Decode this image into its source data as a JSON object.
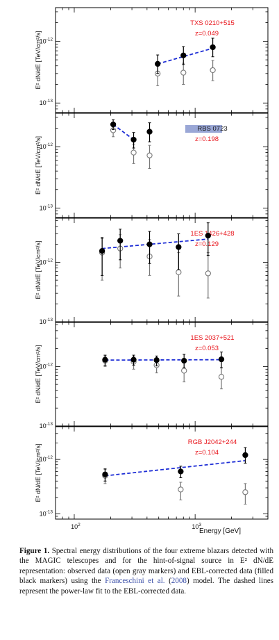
{
  "chart_data": [
    {
      "type": "scatter",
      "source_name": "TXS 0210+515",
      "redshift_label": "z=0.049",
      "ylabel": "E² dN/dE [TeV/cm²/s]",
      "y_scale": "log",
      "ylim": [
        7e-14,
        3.5e-12
      ],
      "y_ticks": [
        {
          "value": 1e-13,
          "mantissa": "10",
          "exp": "-13"
        },
        {
          "value": 1e-12,
          "mantissa": "10",
          "exp": "-12"
        }
      ],
      "series": [
        {
          "name": "observed data",
          "marker": "open gray circle",
          "x": [
            490,
            800,
            1400
          ],
          "y": [
            3e-13,
            3.1e-13,
            3.4e-13
          ],
          "y_err_low": [
            1.9e-13,
            2e-13,
            2.3e-13
          ],
          "y_err_high": [
            4.3e-13,
            4.4e-13,
            4.9e-13
          ]
        },
        {
          "name": "EBL-corrected data",
          "marker": "filled black circle",
          "x": [
            490,
            800,
            1400
          ],
          "y": [
            4.3e-13,
            5.9e-13,
            8e-13
          ],
          "y_err_low": [
            3e-13,
            4.2e-13,
            5.6e-13
          ],
          "y_err_high": [
            6e-13,
            8.2e-13,
            1.12e-12
          ]
        },
        {
          "name": "power-law fit",
          "style": "dashed blue",
          "x": [
            490,
            1400
          ],
          "y": [
            4.3e-13,
            7.7e-13
          ]
        }
      ]
    },
    {
      "type": "scatter",
      "source_name": "RBS 0723",
      "redshift_label": "z=0.198",
      "ylabel": "E² dN/dE [TeV/cm²/s]",
      "y_scale": "log",
      "ylim": [
        7e-14,
        3.5e-12
      ],
      "y_ticks": [
        {
          "value": 1e-13,
          "mantissa": "10",
          "exp": "-13"
        },
        {
          "value": 1e-12,
          "mantissa": "10",
          "exp": "-12"
        }
      ],
      "series": [
        {
          "name": "observed data",
          "marker": "open gray circle",
          "x": [
            210,
            310,
            420
          ],
          "y": [
            1.85e-12,
            8e-13,
            7.2e-13
          ],
          "y_err_low": [
            1.45e-12,
            5.3e-13,
            4.4e-13
          ],
          "y_err_high": [
            2.25e-12,
            1.1e-12,
            1.05e-12
          ]
        },
        {
          "name": "EBL-corrected data",
          "marker": "filled black circle",
          "x": [
            210,
            310,
            420
          ],
          "y": [
            2.3e-12,
            1.3e-12,
            1.75e-12
          ],
          "y_err_low": [
            1.9e-12,
            9.5e-13,
            1.2e-12
          ],
          "y_err_high": [
            2.75e-12,
            1.7e-12,
            2.45e-12
          ]
        },
        {
          "name": "power-law fit",
          "style": "dashed blue",
          "x": [
            210,
            310
          ],
          "y": [
            2.3e-12,
            1.3e-12
          ]
        }
      ]
    },
    {
      "type": "scatter",
      "source_name": "1ES 1426+428",
      "redshift_label": "z=0.129",
      "ylabel": "E² dN/dE [TeV/cm²/s]",
      "y_scale": "log",
      "ylim": [
        1e-13,
        5.5e-12
      ],
      "y_ticks": [
        {
          "value": 1e-13,
          "mantissa": "10",
          "exp": "-13"
        },
        {
          "value": 1e-12,
          "mantissa": "10",
          "exp": "-12"
        }
      ],
      "series": [
        {
          "name": "observed data",
          "marker": "open gray circle",
          "x": [
            170,
            240,
            420,
            730,
            1280
          ],
          "y": [
            1.45e-12,
            1.7e-12,
            1.25e-12,
            6.8e-13,
            6.5e-13
          ],
          "y_err_low": [
            5e-13,
            8e-13,
            6e-13,
            2.7e-13,
            2.5e-13
          ],
          "y_err_high": [
            2.5e-12,
            2.9e-12,
            2.4e-12,
            1.45e-12,
            1.45e-12
          ]
        },
        {
          "name": "EBL-corrected data",
          "marker": "filled black circle",
          "x": [
            170,
            240,
            420,
            730,
            1280
          ],
          "y": [
            1.55e-12,
            2.3e-12,
            2e-12,
            1.8e-12,
            2.8e-12
          ],
          "y_err_low": [
            6e-13,
            1.1e-12,
            9.5e-13,
            7.5e-13,
            1.3e-12
          ],
          "y_err_high": [
            2.6e-12,
            3.6e-12,
            3.3e-12,
            3e-12,
            4.6e-12
          ]
        },
        {
          "name": "power-law fit",
          "style": "dashed blue",
          "x": [
            170,
            1280
          ],
          "y": [
            1.7e-12,
            2.45e-12
          ]
        }
      ]
    },
    {
      "type": "scatter",
      "source_name": "1ES 2037+521",
      "redshift_label": "z=0.053",
      "ylabel": "E² dN/dE [TeV/cm²/s]",
      "y_scale": "log",
      "ylim": [
        1e-13,
        5.5e-12
      ],
      "y_ticks": [
        {
          "value": 1e-13,
          "mantissa": "10",
          "exp": "-13"
        },
        {
          "value": 1e-12,
          "mantissa": "10",
          "exp": "-12"
        }
      ],
      "series": [
        {
          "name": "observed data",
          "marker": "open gray circle",
          "x": [
            180,
            310,
            480,
            810,
            1650
          ],
          "y": [
            1.25e-12,
            1.2e-12,
            1.05e-12,
            8.5e-13,
            6.7e-13
          ],
          "y_err_low": [
            1e-12,
            9e-13,
            7.8e-13,
            5.5e-13,
            4.2e-13
          ],
          "y_err_high": [
            1.5e-12,
            1.45e-12,
            1.3e-12,
            1.15e-12,
            9.5e-13
          ]
        },
        {
          "name": "EBL-corrected data",
          "marker": "filled black circle",
          "x": [
            180,
            310,
            480,
            810,
            1650
          ],
          "y": [
            1.3e-12,
            1.3e-12,
            1.28e-12,
            1.25e-12,
            1.32e-12
          ],
          "y_err_low": [
            1.05e-12,
            1.05e-12,
            1.02e-12,
            9.5e-13,
            9.5e-13
          ],
          "y_err_high": [
            1.55e-12,
            1.55e-12,
            1.5e-12,
            1.6e-12,
            1.75e-12
          ]
        },
        {
          "name": "power-law fit",
          "style": "dashed blue",
          "x": [
            180,
            1650
          ],
          "y": [
            1.28e-12,
            1.3e-12
          ]
        }
      ]
    },
    {
      "type": "scatter",
      "source_name": "RGB J2042+244",
      "redshift_label": "z=0.104",
      "ylabel": "E² dN/dE [TeV/cm²/s]",
      "xlabel": "Energy [GeV]",
      "x_scale": "log",
      "xlim": [
        70,
        4000
      ],
      "x_ticks": [
        {
          "value": 100,
          "mantissa": "10",
          "exp": "2"
        },
        {
          "value": 1000,
          "mantissa": "10",
          "exp": "3"
        }
      ],
      "y_scale": "log",
      "ylim": [
        8e-14,
        4e-12
      ],
      "y_ticks": [
        {
          "value": 1e-13,
          "mantissa": "10",
          "exp": "-13"
        },
        {
          "value": 1e-12,
          "mantissa": "10",
          "exp": "-12"
        }
      ],
      "series": [
        {
          "name": "observed data",
          "marker": "open gray circle",
          "x": [
            180,
            760,
            2600
          ],
          "y": [
            5e-13,
            2.8e-13,
            2.5e-13
          ],
          "y_err_low": [
            3.6e-13,
            1.8e-13,
            1.5e-13
          ],
          "y_err_high": [
            6.5e-13,
            3.8e-13,
            3.6e-13
          ]
        },
        {
          "name": "EBL-corrected data",
          "marker": "filled black circle",
          "x": [
            180,
            760,
            2600
          ],
          "y": [
            5.3e-13,
            6e-13,
            1.2e-12
          ],
          "y_err_low": [
            4e-13,
            4.6e-13,
            8.5e-13
          ],
          "y_err_high": [
            6.7e-13,
            7.5e-13,
            1.65e-12
          ]
        },
        {
          "name": "power-law fit",
          "style": "dashed blue",
          "x": [
            180,
            2600
          ],
          "y": [
            5e-13,
            9.5e-13
          ]
        }
      ]
    }
  ],
  "caption": {
    "label": "Figure 1.",
    "text_before_cite": "Spectral energy distributions of the four extreme blazars detected with the MAGIC telescopes and for the hint-of-signal source in E² dN/dE representation: observed data (open gray markers) and EBL-corrected data (filled black markers) using the",
    "cite_author": "Franceschini et al.",
    "cite_year": "2008",
    "text_after_cite": "model. The dashed lines represent the power-law fit to the EBL-corrected data."
  },
  "colors": {
    "ebl_corrected": "#000000",
    "observed": "#777777",
    "fit_line": "#1f2fd6",
    "source_label": "#e8141b",
    "rbs_label_highlight": "#9aa7d6",
    "citation": "#3b4fa8"
  }
}
